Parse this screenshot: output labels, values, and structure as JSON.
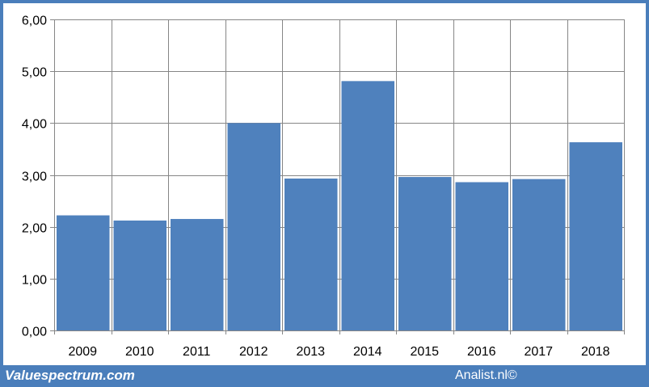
{
  "chart_data": {
    "type": "bar",
    "title": "",
    "xlabel": "",
    "ylabel": "",
    "categories": [
      "2009",
      "2010",
      "2011",
      "2012",
      "2013",
      "2014",
      "2015",
      "2016",
      "2017",
      "2018"
    ],
    "values": [
      2.22,
      2.12,
      2.15,
      4.0,
      2.93,
      4.81,
      2.96,
      2.86,
      2.92,
      3.63
    ],
    "ylim": [
      0,
      6
    ],
    "yticks": [
      0,
      1,
      2,
      3,
      4,
      5,
      6
    ],
    "ytick_labels": [
      "0,00",
      "1,00",
      "2,00",
      "3,00",
      "4,00",
      "5,00",
      "6,00"
    ],
    "grid": true,
    "bar_color": "#4f81bd",
    "grid_color": "#868686"
  },
  "footer": {
    "brand": "Valuespectrum.com",
    "credit": "Analist.nl©"
  },
  "colors": {
    "frame": "#4a7ebb",
    "background": "#ffffff"
  }
}
